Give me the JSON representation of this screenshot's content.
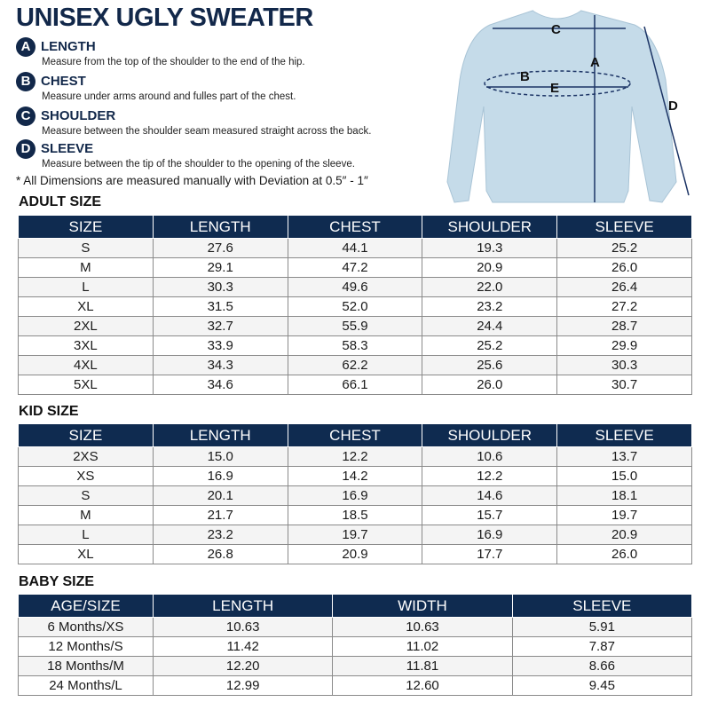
{
  "title": "UNISEX UGLY SWEATER",
  "measures": [
    {
      "letter": "A",
      "name": "LENGTH",
      "desc": "Measure from the top of the shoulder to the end of the hip."
    },
    {
      "letter": "B",
      "name": "CHEST",
      "desc": "Measure under arms around and fulles part of the chest."
    },
    {
      "letter": "C",
      "name": "SHOULDER",
      "desc": "Measure between the shoulder seam measured straight across the back."
    },
    {
      "letter": "D",
      "name": "SLEEVE",
      "desc": "Measure between the tip of the shoulder to the opening of the sleeve."
    }
  ],
  "note": "* All Dimensions are measured manually with Deviation at 0.5″ - 1″",
  "diagram": {
    "labels": [
      "C",
      "A",
      "B",
      "E",
      "D"
    ],
    "color": "#c5dbe9"
  },
  "adult": {
    "title": "ADULT SIZE",
    "headers": [
      "SIZE",
      "LENGTH",
      "CHEST",
      "SHOULDER",
      "SLEEVE"
    ],
    "rows": [
      [
        "S",
        "27.6",
        "44.1",
        "19.3",
        "25.2"
      ],
      [
        "M",
        "29.1",
        "47.2",
        "20.9",
        "26.0"
      ],
      [
        "L",
        "30.3",
        "49.6",
        "22.0",
        "26.4"
      ],
      [
        "XL",
        "31.5",
        "52.0",
        "23.2",
        "27.2"
      ],
      [
        "2XL",
        "32.7",
        "55.9",
        "24.4",
        "28.7"
      ],
      [
        "3XL",
        "33.9",
        "58.3",
        "25.2",
        "29.9"
      ],
      [
        "4XL",
        "34.3",
        "62.2",
        "25.6",
        "30.3"
      ],
      [
        "5XL",
        "34.6",
        "66.1",
        "26.0",
        "30.7"
      ]
    ]
  },
  "kid": {
    "title": "KID SIZE",
    "headers": [
      "SIZE",
      "LENGTH",
      "CHEST",
      "SHOULDER",
      "SLEEVE"
    ],
    "rows": [
      [
        "2XS",
        "15.0",
        "12.2",
        "10.6",
        "13.7"
      ],
      [
        "XS",
        "16.9",
        "14.2",
        "12.2",
        "15.0"
      ],
      [
        "S",
        "20.1",
        "16.9",
        "14.6",
        "18.1"
      ],
      [
        "M",
        "21.7",
        "18.5",
        "15.7",
        "19.7"
      ],
      [
        "L",
        "23.2",
        "19.7",
        "16.9",
        "20.9"
      ],
      [
        "XL",
        "26.8",
        "20.9",
        "17.7",
        "26.0"
      ]
    ]
  },
  "baby": {
    "title": "BABY SIZE",
    "headers": [
      "AGE/SIZE",
      "LENGTH",
      "WIDTH",
      "SLEEVE"
    ],
    "rows": [
      [
        "6 Months/XS",
        "10.63",
        "10.63",
        "5.91"
      ],
      [
        "12 Months/S",
        "11.42",
        "11.02",
        "7.87"
      ],
      [
        "18 Months/M",
        "12.20",
        "11.81",
        "8.66"
      ],
      [
        "24 Months/L",
        "12.99",
        "12.60",
        "9.45"
      ]
    ]
  }
}
